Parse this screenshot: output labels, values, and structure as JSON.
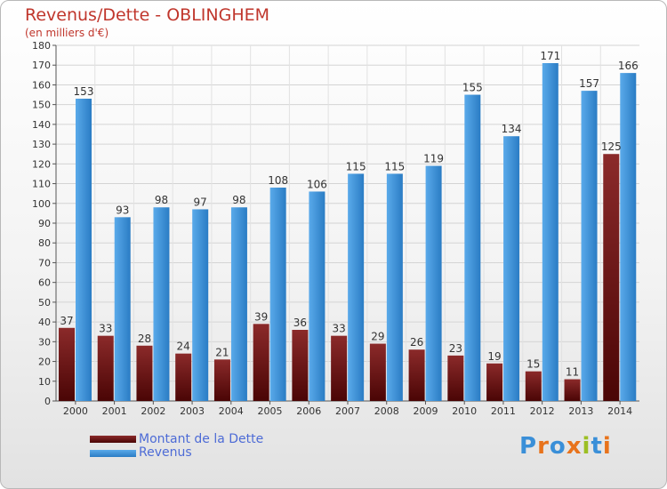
{
  "chart_title": "Revenus/Dette - OBLINGHEM",
  "chart_subtitle": "(en milliers d'€)",
  "legend": {
    "debt_label": "Montant de la Dette",
    "revenue_label": "Revenus"
  },
  "logo": {
    "letters": [
      "P",
      "r",
      "o",
      "x",
      "i",
      "t",
      "i"
    ],
    "colors": [
      "#3a8fd8",
      "#e8731c",
      "#3a8fd8",
      "#e8731c",
      "#9cbf24",
      "#3a8fd8",
      "#e8731c"
    ]
  },
  "colors": {
    "debt_top": "#8b2a2a",
    "debt_bottom": "#4a0505",
    "revenue_top": "#5aaaea",
    "revenue_bottom": "#2a7cc4",
    "title": "#c0362c",
    "legend_text": "#4d6bd6"
  },
  "chart_data": {
    "type": "bar",
    "categories": [
      "2000",
      "2001",
      "2002",
      "2003",
      "2004",
      "2005",
      "2006",
      "2007",
      "2008",
      "2009",
      "2010",
      "2011",
      "2012",
      "2013",
      "2014"
    ],
    "series": [
      {
        "name": "Montant de la Dette",
        "values": [
          37,
          33,
          28,
          24,
          21,
          39,
          36,
          33,
          29,
          26,
          23,
          19,
          15,
          11,
          125
        ]
      },
      {
        "name": "Revenus",
        "values": [
          153,
          93,
          98,
          97,
          98,
          108,
          106,
          115,
          115,
          119,
          155,
          134,
          171,
          157,
          166
        ]
      }
    ],
    "ylim": [
      0,
      180
    ],
    "yticks": [
      0,
      10,
      20,
      30,
      40,
      50,
      60,
      70,
      80,
      90,
      100,
      110,
      120,
      130,
      140,
      150,
      160,
      170,
      180
    ],
    "grid": true,
    "data_labels": true,
    "legend_position": "bottom-left"
  }
}
